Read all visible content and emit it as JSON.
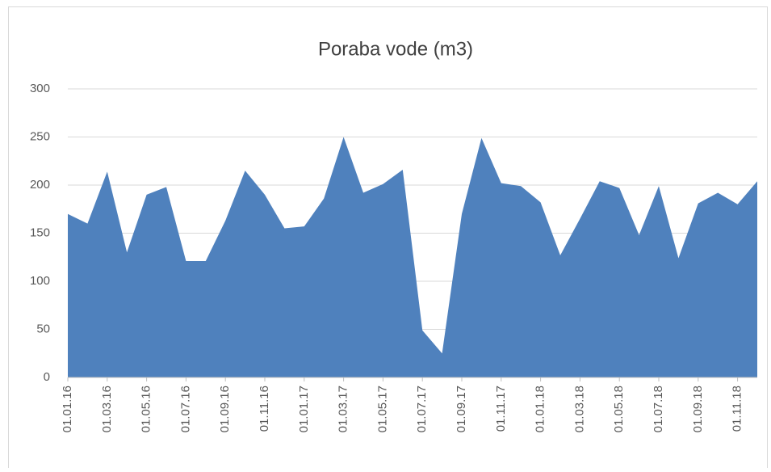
{
  "chart_data": {
    "type": "area",
    "title": "Poraba vode (m3)",
    "categories": [
      "01.01.16",
      null,
      "01.03.16",
      null,
      "01.05.16",
      null,
      "01.07.16",
      null,
      "01.09.16",
      null,
      "01.11.16",
      null,
      "01.01.17",
      null,
      "01.03.17",
      null,
      "01.05.17",
      null,
      "01.07.17",
      null,
      "01.09.17",
      null,
      "01.11.17",
      null,
      "01.01.18",
      null,
      "01.03.18",
      null,
      "01.05.18",
      null,
      "01.07.18",
      null,
      "01.09.18",
      null,
      "01.11.18",
      null
    ],
    "values": [
      170,
      160,
      214,
      130,
      190,
      198,
      121,
      121,
      163,
      215,
      190,
      155,
      157,
      186,
      250,
      192,
      201,
      216,
      49,
      25,
      170,
      249,
      202,
      199,
      182,
      127,
      165,
      204,
      197,
      148,
      199,
      124,
      181,
      192,
      180,
      204
    ],
    "color": "#4f81bd",
    "ylim": [
      0,
      300
    ],
    "yticks": [
      0,
      50,
      100,
      150,
      200,
      250,
      300
    ],
    "grid": true
  }
}
